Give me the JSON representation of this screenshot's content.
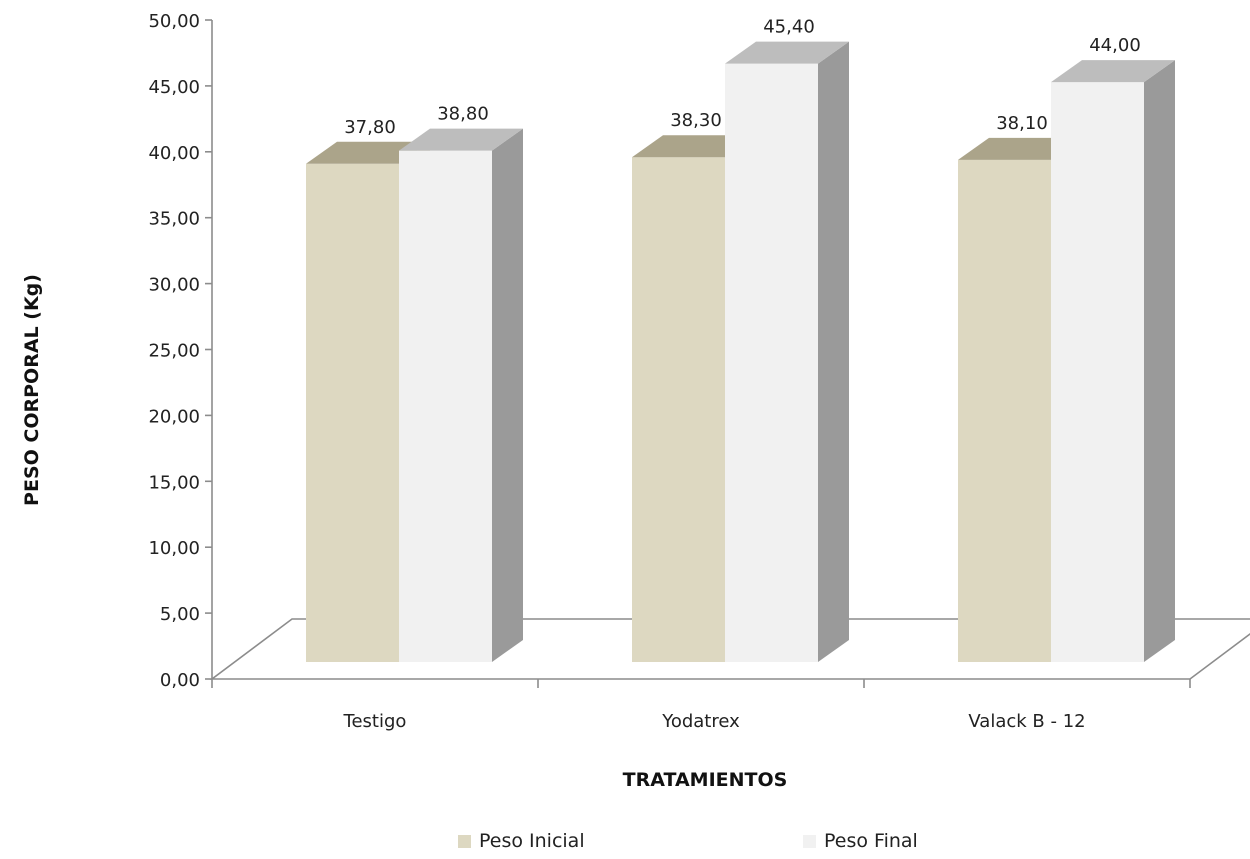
{
  "chart_data": {
    "type": "bar",
    "categories": [
      "Testigo",
      "Yodatrex",
      "Valack B - 12"
    ],
    "series": [
      {
        "name": "Peso Inicial",
        "values": [
          37.8,
          38.3,
          38.1
        ],
        "labels": [
          "37,80",
          "38,30",
          "38,10"
        ],
        "color": "#DDD8C1",
        "top_color": "#ABA48A",
        "side_color": "#B9B39C"
      },
      {
        "name": "Peso Final",
        "values": [
          38.8,
          45.4,
          44.0
        ],
        "labels": [
          "38,80",
          "45,40",
          "44,00"
        ],
        "color": "#F1F1F1",
        "top_color": "#BDBDBD",
        "side_color": "#9A9A9A"
      }
    ],
    "ylabel": "PESO CORPORAL (Kg)",
    "xlabel": "TRATAMIENTOS",
    "ylim": [
      0,
      50
    ],
    "yticks": [
      "0,00",
      "5,00",
      "10,00",
      "15,00",
      "20,00",
      "25,00",
      "30,00",
      "35,00",
      "40,00",
      "45,00",
      "50,00"
    ],
    "legend_position": "bottom",
    "grid": false,
    "three_d": true
  }
}
